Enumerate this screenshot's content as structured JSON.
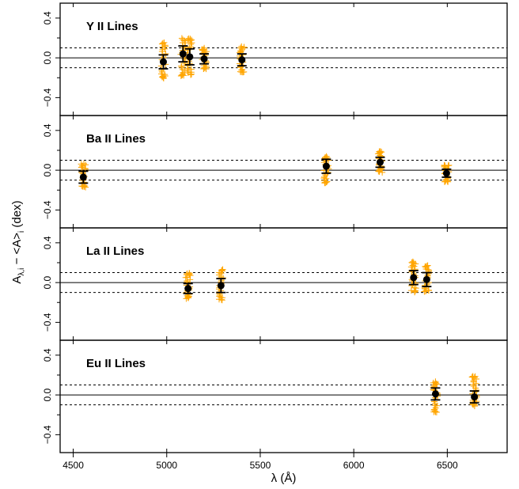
{
  "chart_data": {
    "type": "scatter",
    "xlabel": "λ (Å)",
    "ylabel": "A",
    "ylabel_sub": "λ,i",
    "ylabel_mid": " − <A>",
    "ylabel_sub2": "i",
    "ylabel_tail": " (dex)",
    "xlim": [
      4430,
      6820
    ],
    "ylim": [
      -0.58,
      0.55
    ],
    "x_ticks": [
      4500,
      5000,
      5500,
      6000,
      6500
    ],
    "x_tick_labels": [
      "4500",
      "5000",
      "5500",
      "6000",
      "6500"
    ],
    "y_ticks": [
      -0.4,
      0.0,
      0.4
    ],
    "y_tick_labels": [
      "−0.4",
      "0.0",
      "0.4"
    ],
    "y_minor_ticks": [
      -0.2,
      0.2
    ],
    "reference_lines": {
      "solid": 0.0,
      "dashed": [
        0.1,
        -0.1
      ]
    },
    "colors": {
      "scatter": "#FFA500",
      "mean": "#000000",
      "axis": "#000000"
    },
    "panels": [
      {
        "title": "Y II Lines",
        "lines": [
          {
            "wavelength": 4982,
            "mean": -0.04,
            "err": 0.07,
            "spread_min": -0.22,
            "spread_max": 0.16
          },
          {
            "wavelength": 5087,
            "mean": 0.04,
            "err": 0.08,
            "spread_min": -0.2,
            "spread_max": 0.2
          },
          {
            "wavelength": 5123,
            "mean": 0.01,
            "err": 0.08,
            "spread_min": -0.18,
            "spread_max": 0.22
          },
          {
            "wavelength": 5200,
            "mean": -0.01,
            "err": 0.05,
            "spread_min": -0.12,
            "spread_max": 0.1
          },
          {
            "wavelength": 5402,
            "mean": -0.02,
            "err": 0.06,
            "spread_min": -0.16,
            "spread_max": 0.12
          }
        ]
      },
      {
        "title": "Ba II Lines",
        "lines": [
          {
            "wavelength": 4554,
            "mean": -0.07,
            "err": 0.06,
            "spread_min": -0.18,
            "spread_max": 0.07
          },
          {
            "wavelength": 5853,
            "mean": 0.04,
            "err": 0.07,
            "spread_min": -0.14,
            "spread_max": 0.15
          },
          {
            "wavelength": 6141,
            "mean": 0.08,
            "err": 0.05,
            "spread_min": -0.03,
            "spread_max": 0.2
          },
          {
            "wavelength": 6496,
            "mean": -0.03,
            "err": 0.04,
            "spread_min": -0.12,
            "spread_max": 0.06
          }
        ]
      },
      {
        "title": "La II Lines",
        "lines": [
          {
            "wavelength": 5114,
            "mean": -0.06,
            "err": 0.05,
            "spread_min": -0.17,
            "spread_max": 0.1
          },
          {
            "wavelength": 5290,
            "mean": -0.03,
            "err": 0.07,
            "spread_min": -0.18,
            "spread_max": 0.14
          },
          {
            "wavelength": 6320,
            "mean": 0.05,
            "err": 0.07,
            "spread_min": -0.1,
            "spread_max": 0.22
          },
          {
            "wavelength": 6390,
            "mean": 0.03,
            "err": 0.07,
            "spread_min": -0.1,
            "spread_max": 0.18
          }
        ]
      },
      {
        "title": "Eu II Lines",
        "lines": [
          {
            "wavelength": 6437,
            "mean": 0.01,
            "err": 0.06,
            "spread_min": -0.18,
            "spread_max": 0.14
          },
          {
            "wavelength": 6645,
            "mean": -0.02,
            "err": 0.06,
            "spread_min": -0.12,
            "spread_max": 0.2
          }
        ]
      }
    ]
  }
}
